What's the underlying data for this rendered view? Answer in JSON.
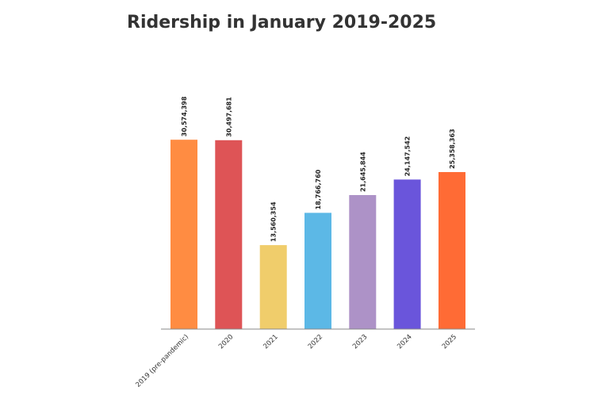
{
  "chart_data": {
    "type": "bar",
    "title": "Ridership in January 2019-2025",
    "xlabel": "",
    "ylabel": "",
    "ylim": [
      0,
      31500000
    ],
    "grid": false,
    "categories": [
      "2019 (pre-pandemic)",
      "2020",
      "2021",
      "2022",
      "2023",
      "2024",
      "2025"
    ],
    "values": [
      30574398,
      30497681,
      13560354,
      18766760,
      21645844,
      24147542,
      25358363
    ],
    "value_labels": [
      "30,574,398",
      "30,497,681",
      "13,560,354",
      "18,766,760",
      "21,645,844",
      "24,147,542",
      "25,358,363"
    ],
    "colors": [
      "#FF8C42",
      "#DE5456",
      "#F0CD6B",
      "#5CB8E6",
      "#AD92C7",
      "#6A55DB",
      "#FF6B35"
    ]
  }
}
